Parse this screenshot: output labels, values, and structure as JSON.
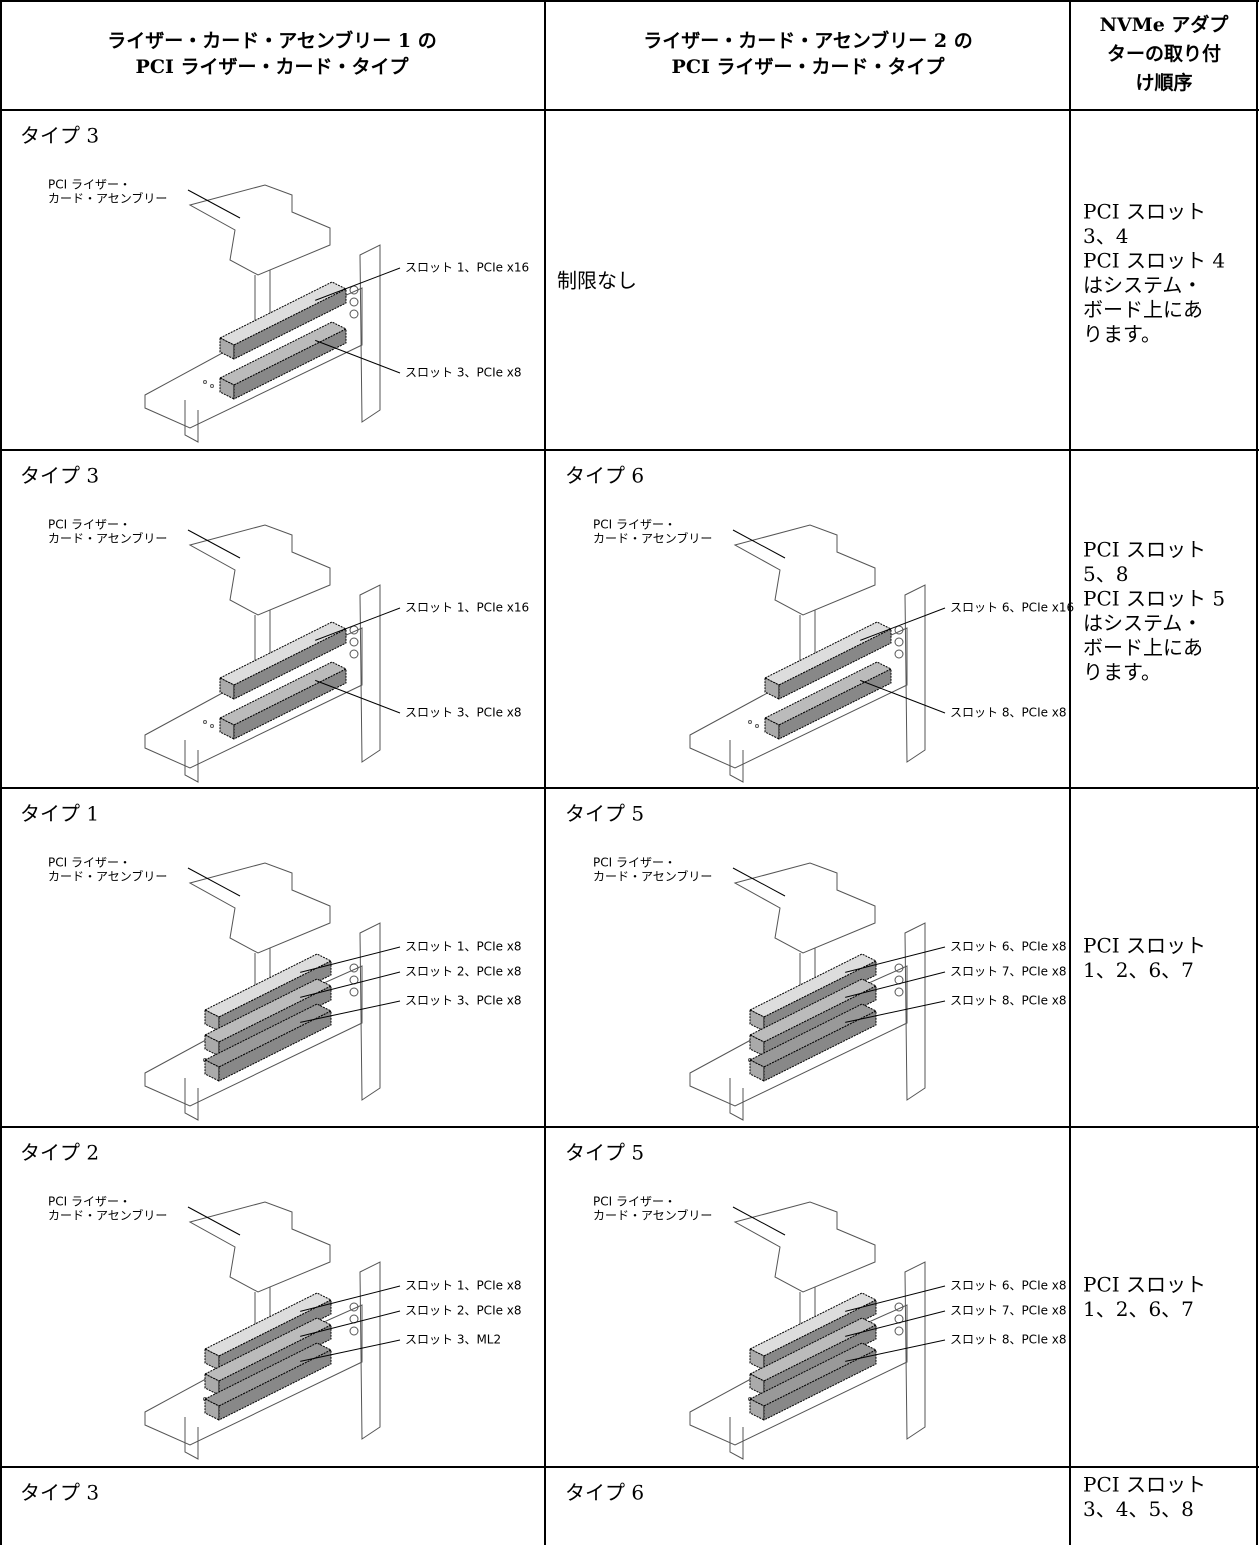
{
  "header": [
    [
      "ライザー・カード・アセンブリー 1 の",
      "PCI ライザー・カード・タイプ"
    ],
    [
      "ライザー・カード・アセンブリー 2 の",
      "PCI ライザー・カード・タイプ"
    ],
    [
      "NVMe アダプ",
      "ターの取り付",
      "け順序"
    ]
  ],
  "rows": [
    {
      "cells": [
        {
          "type": "タイプ 3",
          "diagram": {
            "assembly_label": [
              "PCI ライザー・",
              "カード・アセンブリー"
            ],
            "slots": [
              "スロット 1、PCIe x16",
              "スロット 3、PCIe x8"
            ]
          }
        },
        {
          "text": "制限なし"
        },
        {
          "lines": [
            "PCI スロット",
            "3、4",
            "PCI スロット 4",
            "はシステム・",
            "ボード上にあ",
            "ります。"
          ]
        }
      ]
    },
    {
      "cells": [
        {
          "type": "タイプ 3",
          "diagram": {
            "assembly_label": [
              "PCI ライザー・",
              "カード・アセンブリー"
            ],
            "slots": [
              "スロット 1、PCIe x16",
              "スロット 3、PCIe x8"
            ]
          }
        },
        {
          "type": "タイプ 6",
          "diagram": {
            "assembly_label": [
              "PCI ライザー・",
              "カード・アセンブリー"
            ],
            "slots": [
              "スロット 6、PCIe x16",
              "スロット 8、PCIe x8"
            ]
          }
        },
        {
          "lines": [
            "PCI スロット",
            "5、8",
            "PCI スロット 5",
            "はシステム・",
            "ボード上にあ",
            "ります。"
          ]
        }
      ]
    },
    {
      "cells": [
        {
          "type": "タイプ 1",
          "diagram": {
            "assembly_label": [
              "PCI ライザー・",
              "カード・アセンブリー"
            ],
            "slots": [
              "スロット 1、PCIe x8",
              "スロット 2、PCIe x8",
              "スロット 3、PCIe x8"
            ]
          }
        },
        {
          "type": "タイプ 5",
          "diagram": {
            "assembly_label": [
              "PCI ライザー・",
              "カード・アセンブリー"
            ],
            "slots": [
              "スロット 6、PCIe x8",
              "スロット 7、PCIe x8",
              "スロット 8、PCIe x8"
            ]
          }
        },
        {
          "lines": [
            "PCI スロット",
            "1、2、6、7"
          ]
        }
      ]
    },
    {
      "cells": [
        {
          "type": "タイプ 2",
          "diagram": {
            "assembly_label": [
              "PCI ライザー・",
              "カード・アセンブリー"
            ],
            "slots": [
              "スロット 1、PCIe x8",
              "スロット 2、PCIe x8",
              "スロット 3、ML2"
            ]
          }
        },
        {
          "type": "タイプ 5",
          "diagram": {
            "assembly_label": [
              "PCI ライザー・",
              "カード・アセンブリー"
            ],
            "slots": [
              "スロット 6、PCIe x8",
              "スロット 7、PCIe x8",
              "スロット 8、PCIe x8"
            ]
          }
        },
        {
          "lines": [
            "PCI スロット",
            "1、2、6、7"
          ]
        }
      ]
    },
    {
      "cells": [
        {
          "type": "タイプ 3"
        },
        {
          "type": "タイプ 6"
        },
        {
          "lines": [
            "PCI スロット",
            "3、4、5、8"
          ]
        }
      ]
    }
  ]
}
